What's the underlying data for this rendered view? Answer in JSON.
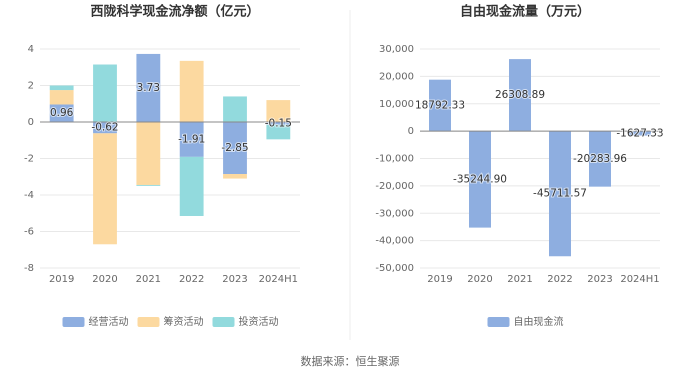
{
  "charts": [
    {
      "chart_data": {
        "type": "bar",
        "stacked": true,
        "title": "西陇科学现金流净额（亿元）",
        "categories": [
          "2019",
          "2020",
          "2021",
          "2022",
          "2023",
          "2024H1"
        ],
        "series": [
          {
            "name": "经营活动",
            "color": "#8eaee0",
            "data_labels": true,
            "values": [
              0.96,
              -0.62,
              3.73,
              -1.91,
              -2.85,
              -0.15
            ]
          },
          {
            "name": "筹资活动",
            "color": "#fcd9a0",
            "values": [
              0.79,
              -6.08,
              -3.45,
              3.35,
              -0.25,
              1.2
            ]
          },
          {
            "name": "投资活动",
            "color": "#92dadd",
            "values": [
              0.25,
              3.15,
              -0.05,
              -3.24,
              1.4,
              -0.8
            ]
          }
        ],
        "ylim": [
          -8,
          4
        ],
        "yticks": [
          -8,
          -6,
          -4,
          -2,
          0,
          2,
          4
        ],
        "grid": true
      }
    },
    {
      "chart_data": {
        "type": "bar",
        "title": "自由现金流量（万元）",
        "categories": [
          "2019",
          "2020",
          "2021",
          "2022",
          "2023",
          "2024H1"
        ],
        "series": [
          {
            "name": "自由现金流",
            "color": "#8eaee0",
            "data_labels": true,
            "values": [
              18792.33,
              -35244.9,
              26308.89,
              -45711.57,
              -20283.96,
              -1627.33
            ],
            "value_labels": [
              "18792.33",
              "-35244.90",
              "26308.89",
              "-45711.57",
              "-20283.96",
              "-1627.33"
            ]
          }
        ],
        "ylim": [
          -50000,
          30000
        ],
        "yticks": [
          {
            "value": -50000,
            "label": "-50,000"
          },
          {
            "value": -40000,
            "label": "-40,000"
          },
          {
            "value": -30000,
            "label": "-30,000"
          },
          {
            "value": -20000,
            "label": "-20,000"
          },
          {
            "value": -10000,
            "label": "-10,000"
          },
          0,
          {
            "value": 10000,
            "label": "10,000"
          },
          {
            "value": 20000,
            "label": "20,000"
          },
          {
            "value": 30000,
            "label": "30,000"
          }
        ],
        "grid": true
      }
    }
  ],
  "source": "数据来源：恒生聚源"
}
